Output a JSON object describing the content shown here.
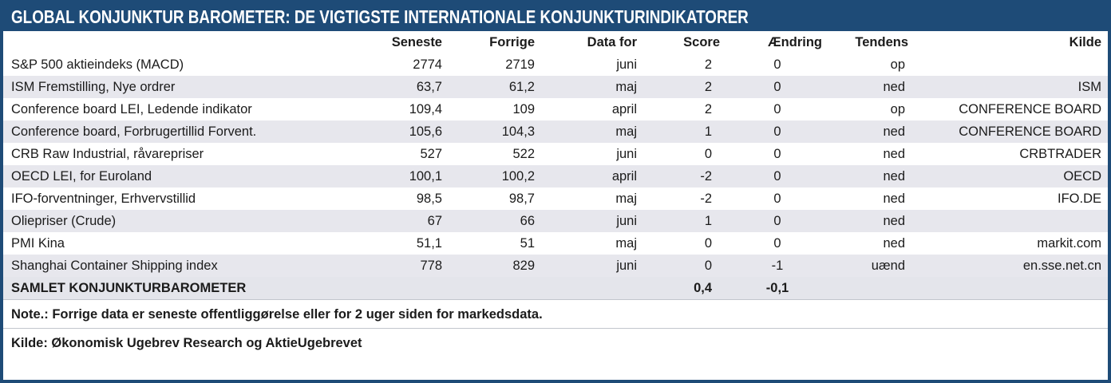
{
  "colors": {
    "header_bg": "#1e4b77",
    "stripe": "#e7e7ed",
    "summary_bg": "#e4e5eb",
    "text": "#1b1b1b",
    "title_text": "#ffffff"
  },
  "chart_data": {
    "type": "table",
    "title": "GLOBAL KONJUNKTUR BAROMETER: DE VIGTIGSTE INTERNATIONALE KONJUNKTURINDIKATORER",
    "columns": [
      "",
      "Seneste",
      "Forrige",
      "Data for",
      "Score",
      "Ændring",
      "Tendens",
      "Kilde"
    ],
    "rows": [
      {
        "name": "S&P 500 aktieindeks (MACD)",
        "seneste": "2774",
        "forrige": "2719",
        "datafor": "juni",
        "score": "2",
        "aendring": "0",
        "tendens": "op",
        "kilde": ""
      },
      {
        "name": "ISM Fremstilling, Nye ordrer",
        "seneste": "63,7",
        "forrige": "61,2",
        "datafor": "maj",
        "score": "2",
        "aendring": "0",
        "tendens": "ned",
        "kilde": "ISM"
      },
      {
        "name": "Conference board LEI, Ledende indikator",
        "seneste": "109,4",
        "forrige": "109",
        "datafor": "april",
        "score": "2",
        "aendring": "0",
        "tendens": "op",
        "kilde": "CONFERENCE BOARD"
      },
      {
        "name": "Conference board, Forbrugertillid Forvent.",
        "seneste": "105,6",
        "forrige": "104,3",
        "datafor": "maj",
        "score": "1",
        "aendring": "0",
        "tendens": "ned",
        "kilde": "CONFERENCE BOARD"
      },
      {
        "name": "CRB Raw Industrial, råvarepriser",
        "seneste": "527",
        "forrige": "522",
        "datafor": "juni",
        "score": "0",
        "aendring": "0",
        "tendens": "ned",
        "kilde": "CRBTRADER"
      },
      {
        "name": "OECD LEI, for Euroland",
        "seneste": "100,1",
        "forrige": "100,2",
        "datafor": "april",
        "score": "-2",
        "aendring": "0",
        "tendens": "ned",
        "kilde": "OECD"
      },
      {
        "name": "IFO-forventninger, Erhvervstillid",
        "seneste": "98,5",
        "forrige": "98,7",
        "datafor": "maj",
        "score": "-2",
        "aendring": "0",
        "tendens": "ned",
        "kilde": "IFO.DE"
      },
      {
        "name": "Oliepriser (Crude)",
        "seneste": "67",
        "forrige": "66",
        "datafor": "juni",
        "score": "1",
        "aendring": "0",
        "tendens": "ned",
        "kilde": ""
      },
      {
        "name": "PMI Kina",
        "seneste": "51,1",
        "forrige": "51",
        "datafor": "maj",
        "score": "0",
        "aendring": "0",
        "tendens": "ned",
        "kilde": "markit.com"
      },
      {
        "name": "Shanghai  Container Shipping index",
        "seneste": "778",
        "forrige": "829",
        "datafor": "juni",
        "score": "0",
        "aendring": "-1",
        "tendens": "uænd",
        "kilde": "en.sse.net.cn"
      }
    ],
    "summary_row": {
      "name": "SAMLET KONJUNKTURBAROMETER",
      "seneste": "",
      "forrige": "",
      "datafor": "",
      "score": "0,4",
      "aendring": "-0,1",
      "tendens": "",
      "kilde": ""
    },
    "notes": [
      "Note.: Forrige data er seneste offentliggørelse eller for 2 uger siden for markedsdata.",
      "Kilde: Økonomisk Ugebrev Research og AktieUgebrevet"
    ]
  }
}
